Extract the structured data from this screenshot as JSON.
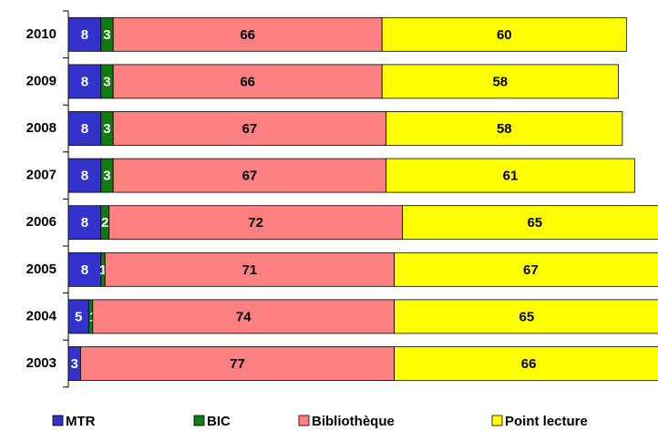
{
  "chart_data": {
    "type": "stacked-bar-horizontal",
    "categories": [
      "2010",
      "2009",
      "2008",
      "2007",
      "2006",
      "2005",
      "2004",
      "2003"
    ],
    "series": [
      {
        "name": "MTR",
        "color": "#3333cc",
        "values": [
          8,
          8,
          8,
          8,
          8,
          8,
          5,
          3
        ]
      },
      {
        "name": "BIC",
        "color": "#107c10",
        "values": [
          3,
          3,
          3,
          3,
          2,
          1,
          1,
          0
        ]
      },
      {
        "name": "Bibliothèque",
        "color": "#ff8080",
        "values": [
          66,
          66,
          67,
          67,
          72,
          71,
          74,
          77
        ]
      },
      {
        "name": "Point lecture",
        "color": "#ffff00",
        "values": [
          60,
          58,
          58,
          61,
          65,
          67,
          65,
          66
        ]
      }
    ]
  }
}
